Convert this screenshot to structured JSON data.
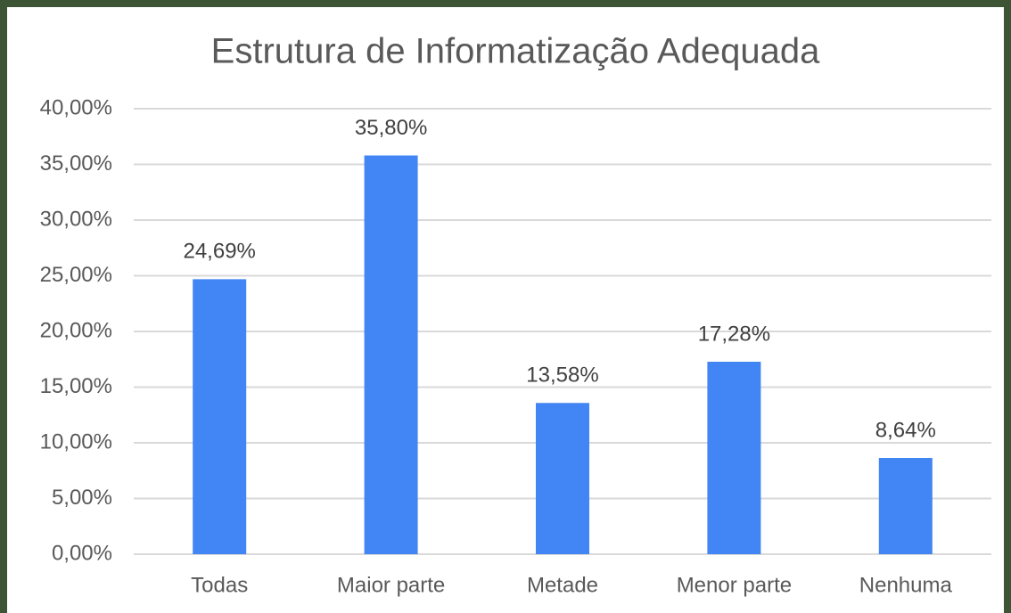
{
  "chart_data": {
    "type": "bar",
    "title": "Estrutura de Informatização Adequada",
    "categories": [
      "Todas",
      "Maior parte",
      "Metade",
      "Menor parte",
      "Nenhuma"
    ],
    "values": [
      24.69,
      35.8,
      13.58,
      17.28,
      8.64
    ],
    "value_labels": [
      "24,69%",
      "35,80%",
      "13,58%",
      "17,28%",
      "8,64%"
    ],
    "color": "#4285f4",
    "ylim": [
      0,
      40
    ],
    "yticks": [
      {
        "value": 0,
        "label": "0,00%"
      },
      {
        "value": 5,
        "label": "5,00%"
      },
      {
        "value": 10,
        "label": "10,00%"
      },
      {
        "value": 15,
        "label": "15,00%"
      },
      {
        "value": 20,
        "label": "20,00%"
      },
      {
        "value": 25,
        "label": "25,00%"
      },
      {
        "value": 30,
        "label": "30,00%"
      },
      {
        "value": 35,
        "label": "35,00%"
      },
      {
        "value": 40,
        "label": "40,00%"
      }
    ],
    "grid": true
  }
}
